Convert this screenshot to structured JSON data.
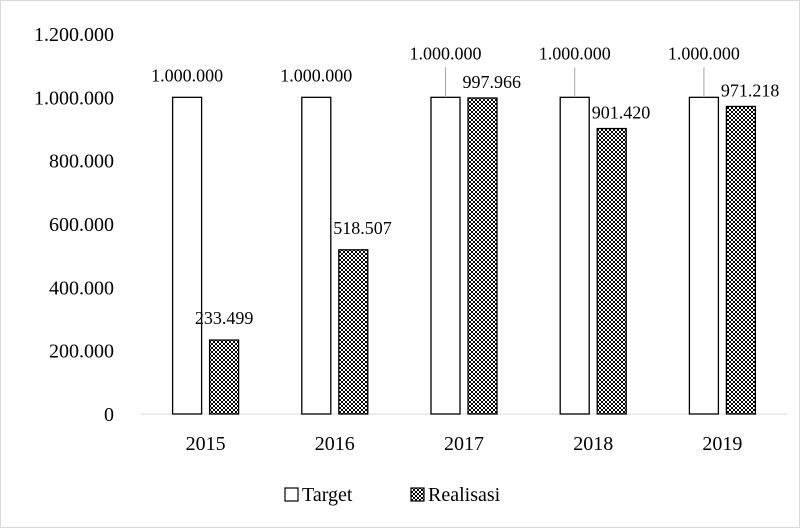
{
  "chart_data": {
    "type": "bar",
    "title": "",
    "xlabel": "",
    "ylabel": "",
    "categories": [
      "2015",
      "2016",
      "2017",
      "2018",
      "2019"
    ],
    "ylim": [
      0,
      1200000
    ],
    "yticks": [
      0,
      200000,
      400000,
      600000,
      800000,
      1000000,
      1200000
    ],
    "ytick_labels": [
      "0",
      "200.000",
      "400.000",
      "600.000",
      "800.000",
      "1.000.000",
      "1.200.000"
    ],
    "grid": false,
    "legend_position": "bottom",
    "series": [
      {
        "name": "Target",
        "values": [
          1000000,
          1000000,
          1000000,
          1000000,
          1000000
        ],
        "labels": [
          "1.000.000",
          "1.000.000",
          "1.000.000",
          "1.000.000",
          "1.000.000"
        ],
        "fill": "white",
        "color": "#000000"
      },
      {
        "name": "Realisasi",
        "values": [
          233499,
          518507,
          997966,
          901420,
          971218
        ],
        "labels": [
          "233.499",
          "518.507",
          "997.966",
          "901.420",
          "971.218"
        ],
        "fill": "checkerboard",
        "color": "#000000"
      }
    ]
  }
}
